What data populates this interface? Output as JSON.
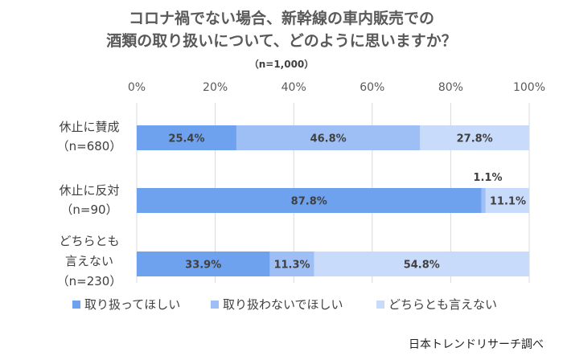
{
  "title": {
    "line1": "コロナ禍でない場合、新幹線の車内販売での",
    "line2": "酒類の取り扱いについて、どのように思いますか？"
  },
  "subtitle": "（n=1,000）",
  "source": "日本トレンドリサーチ調べ",
  "chart_data": {
    "type": "bar",
    "orientation": "horizontal",
    "stacked": "percent",
    "x_ticks": [
      "0%",
      "20%",
      "40%",
      "60%",
      "80%",
      "100%"
    ],
    "xlim": [
      0,
      100
    ],
    "grid": true,
    "legend_position": "bottom",
    "categories": [
      {
        "lines": [
          "休止に賛成",
          "（n=680）"
        ]
      },
      {
        "lines": [
          "休止に反対",
          "（n=90）"
        ]
      },
      {
        "lines": [
          "どちらとも",
          "言えない",
          "（n=230）"
        ]
      }
    ],
    "series": [
      {
        "name": "取り扱ってほしい",
        "color": "#6fa2ee",
        "values": [
          25.4,
          87.8,
          33.9
        ],
        "labels": [
          "25.4%",
          "87.8%",
          "33.9%"
        ]
      },
      {
        "name": "取り扱わないでほしい",
        "color": "#9dbff5",
        "values": [
          46.8,
          1.1,
          11.3
        ],
        "labels": [
          "46.8%",
          "1.1%",
          "11.3%"
        ]
      },
      {
        "name": "どちらとも言えない",
        "color": "#c9dbfa",
        "values": [
          27.8,
          11.1,
          54.8
        ],
        "labels": [
          "27.8%",
          "11.1%",
          "54.8%"
        ]
      }
    ]
  }
}
